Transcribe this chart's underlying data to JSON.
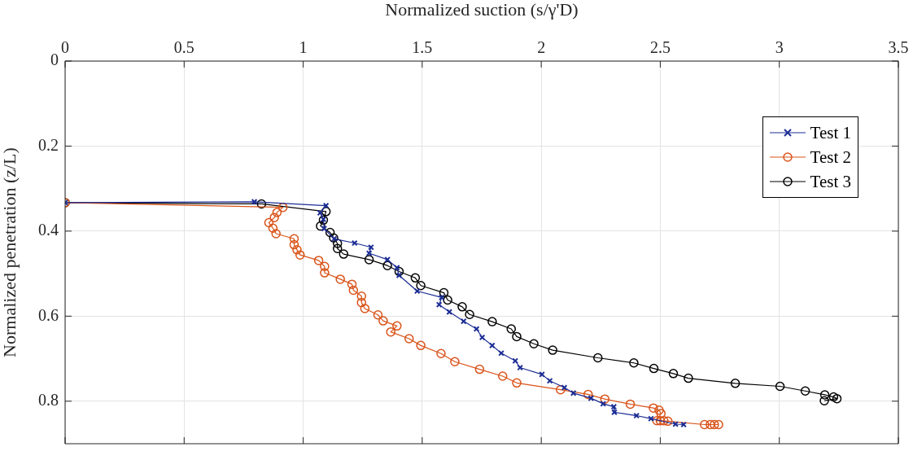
{
  "chart_data": {
    "type": "line",
    "xlabel": "Normalized suction (s/γ'D)",
    "ylabel": "Normalized penetration (z/L)",
    "xlim": [
      0,
      3.5
    ],
    "xticks": [
      0,
      0.5,
      1,
      1.5,
      2,
      2.5,
      3,
      3.5
    ],
    "ylim": [
      0.9,
      0
    ],
    "yticks": [
      0,
      0.2,
      0.4,
      0.6,
      0.8
    ],
    "grid": true,
    "legend": "top right",
    "line_style": "solid",
    "series": [
      {
        "name": "Test 1",
        "color": "#1c2d94",
        "marker": "cross",
        "x": [
          0,
          0.795,
          1.096,
          1.071,
          1.085,
          1.088,
          1.13,
          1.216,
          1.285,
          1.277,
          1.354,
          1.394,
          1.403,
          1.479,
          1.582,
          1.571,
          1.614,
          1.674,
          1.728,
          1.752,
          1.794,
          1.832,
          1.891,
          1.911,
          2.003,
          2.036,
          2.097,
          2.135,
          2.209,
          2.26,
          2.305,
          2.307,
          2.4,
          2.461,
          2.564,
          2.598
        ],
        "values": [
          0.333,
          0.331,
          0.34,
          0.357,
          0.372,
          0.394,
          0.418,
          0.428,
          0.438,
          0.452,
          0.467,
          0.486,
          0.504,
          0.541,
          0.556,
          0.573,
          0.59,
          0.612,
          0.63,
          0.65,
          0.669,
          0.687,
          0.705,
          0.721,
          0.737,
          0.752,
          0.768,
          0.781,
          0.793,
          0.806,
          0.813,
          0.826,
          0.834,
          0.841,
          0.854,
          0.855
        ]
      },
      {
        "name": "Test 2",
        "color": "#d95319",
        "marker": "circle",
        "x": [
          0,
          0.915,
          0.89,
          0.879,
          0.856,
          0.873,
          0.886,
          0.962,
          0.962,
          0.974,
          0.987,
          1.065,
          1.09,
          1.09,
          1.156,
          1.205,
          1.211,
          1.245,
          1.245,
          1.259,
          1.314,
          1.336,
          1.394,
          1.368,
          1.445,
          1.494,
          1.579,
          1.637,
          1.741,
          1.838,
          1.897,
          2.081,
          2.197,
          2.267,
          2.374,
          2.471,
          2.495,
          2.503,
          2.486,
          2.5,
          2.515,
          2.532,
          2.686,
          2.71,
          2.727,
          2.745
        ],
        "values": [
          0.333,
          0.344,
          0.356,
          0.368,
          0.38,
          0.393,
          0.406,
          0.418,
          0.432,
          0.444,
          0.456,
          0.469,
          0.483,
          0.498,
          0.513,
          0.525,
          0.539,
          0.553,
          0.568,
          0.582,
          0.597,
          0.611,
          0.623,
          0.637,
          0.653,
          0.669,
          0.688,
          0.707,
          0.725,
          0.741,
          0.757,
          0.773,
          0.784,
          0.795,
          0.807,
          0.816,
          0.821,
          0.829,
          0.846,
          0.846,
          0.846,
          0.847,
          0.855,
          0.855,
          0.855,
          0.855
        ]
      },
      {
        "name": "Test 3",
        "color": "#000000",
        "marker": "circle",
        "x": [
          0,
          0.825,
          1.096,
          1.085,
          1.073,
          1.113,
          1.128,
          1.144,
          1.144,
          1.17,
          1.277,
          1.354,
          1.403,
          1.471,
          1.494,
          1.591,
          1.607,
          1.668,
          1.699,
          1.794,
          1.874,
          1.897,
          1.969,
          2.048,
          2.238,
          2.389,
          2.473,
          2.555,
          2.618,
          2.815,
          3.003,
          3.109,
          3.191,
          3.228,
          3.242,
          3.189
        ],
        "values": [
          0.333,
          0.336,
          0.354,
          0.374,
          0.388,
          0.403,
          0.416,
          0.429,
          0.441,
          0.454,
          0.467,
          0.481,
          0.495,
          0.51,
          0.528,
          0.545,
          0.562,
          0.578,
          0.596,
          0.613,
          0.63,
          0.648,
          0.665,
          0.68,
          0.698,
          0.71,
          0.723,
          0.735,
          0.746,
          0.758,
          0.765,
          0.776,
          0.785,
          0.79,
          0.794,
          0.799
        ]
      }
    ]
  }
}
